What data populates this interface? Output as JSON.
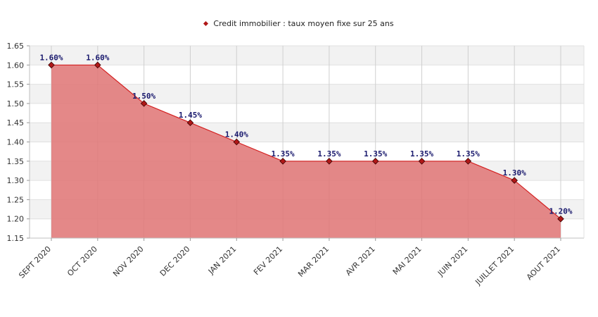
{
  "chart_data": {
    "type": "area",
    "legend": "Credit immobilier : taux moyen fixe sur 25 ans",
    "legend_position": "top-center",
    "grid": true,
    "categories": [
      "SEPT 2020",
      "OCT 2020",
      "NOV 2020",
      "DEC 2020",
      "JAN 2021",
      "FEV 2021",
      "MAR 2021",
      "AVR 2021",
      "MAI 2021",
      "JUIN 2021",
      "JUILLET 2021",
      "AOUT 2021"
    ],
    "series": [
      {
        "name": "Credit immobilier : taux moyen fixe sur 25 ans",
        "values": [
          1.6,
          1.6,
          1.5,
          1.45,
          1.4,
          1.35,
          1.35,
          1.35,
          1.35,
          1.35,
          1.3,
          1.2
        ],
        "labels": [
          "1.60%",
          "1.60%",
          "1.50%",
          "1.45%",
          "1.40%",
          "1.35%",
          "1.35%",
          "1.35%",
          "1.35%",
          "1.35%",
          "1.30%",
          "1.20%"
        ]
      }
    ],
    "ylim": [
      1.15,
      1.65
    ],
    "yticks": [
      "1.15",
      "1.20",
      "1.25",
      "1.30",
      "1.35",
      "1.40",
      "1.45",
      "1.50",
      "1.55",
      "1.60",
      "1.65"
    ],
    "colors": {
      "line": "#d42020",
      "fill": "#e07878",
      "marker": "#b01818",
      "band": "#f2f2f2",
      "grid": "#cfcfcf"
    }
  }
}
